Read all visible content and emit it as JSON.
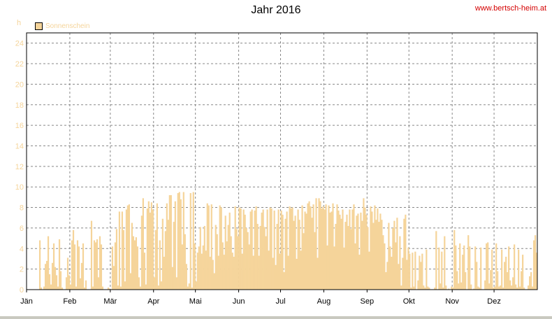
{
  "header": {
    "title": "Jahr 2016",
    "site": "www.bertsch-heim.at"
  },
  "chart_data": {
    "type": "bar",
    "title": "Jahr 2016",
    "ylabel": "h",
    "ylim": [
      0,
      25
    ],
    "yticks": [
      0,
      2,
      4,
      6,
      8,
      10,
      12,
      14,
      16,
      18,
      20,
      22,
      24
    ],
    "grid": true,
    "legend": {
      "position": "top-left",
      "entries": [
        "Sonnenschein"
      ]
    },
    "bar_color": "#f5d49a",
    "months": [
      "Jän",
      "Feb",
      "Mär",
      "Apr",
      "Mai",
      "Jun",
      "Jul",
      "Aug",
      "Sep",
      "Okt",
      "Nov",
      "Dez"
    ],
    "series": [
      {
        "name": "Sonnenschein",
        "values": [
          0,
          0,
          0,
          0,
          0,
          0,
          0,
          0,
          0,
          4.8,
          0.2,
          0,
          0.3,
          2.5,
          2.8,
          5.2,
          1.5,
          0.5,
          2.6,
          4.5,
          2.2,
          1.4,
          0.3,
          4.9,
          1.8,
          0.2,
          0,
          0,
          1.2,
          3.1,
          1.4,
          0.5,
          4.8,
          5.8,
          4.4,
          0.3,
          4.8,
          4.2,
          1.1,
          2.6,
          4.5,
          0.2,
          0.9,
          0,
          0,
          0,
          6.7,
          0.3,
          4.8,
          4.6,
          4.9,
          1.2,
          5.2,
          4.4,
          0.3,
          0,
          0,
          0,
          0.2,
          0.1,
          0,
          4.2,
          2.3,
          4.6,
          5.9,
          0.4,
          7.6,
          0.3,
          7.6,
          5.8,
          0.8,
          7.8,
          8.2,
          8.3,
          1.6,
          6.5,
          5.2,
          4.8,
          5.1,
          4.2,
          1.2,
          0.3,
          7.2,
          8.9,
          3.6,
          0.5,
          7.9,
          8.6,
          7.5,
          8.5,
          7.8,
          1.2,
          5.8,
          8.4,
          0.4,
          4.8,
          0.8,
          6.9,
          3.2,
          5.7,
          8.4,
          6.8,
          9.2,
          9.2,
          2.2,
          6.6,
          8.6,
          1.2,
          9.4,
          9.5,
          8.8,
          4.4,
          9.5,
          5.4,
          2.5,
          0.3,
          0.6,
          9.4,
          0.2,
          9.5,
          4.5,
          0.8,
          3.6,
          4.2,
          6.1,
          3.5,
          4.3,
          6.2,
          3.8,
          8.4,
          8.2,
          3.2,
          8.3,
          2.9,
          1.6,
          6.3,
          5.4,
          3.3,
          8.2,
          8.0,
          4.6,
          3.4,
          7.2,
          4.7,
          6.3,
          7.5,
          5.2,
          3.6,
          3.2,
          8.1,
          5.9,
          5.2,
          8.0,
          7.9,
          3.5,
          7.8,
          7.3,
          6.0,
          5.6,
          4.4,
          7.6,
          7.8,
          3.3,
          7.7,
          8.1,
          6.4,
          3.3,
          6.2,
          7.5,
          7.8,
          6.1,
          5.2,
          7.8,
          3.8,
          8.0,
          7.9,
          3.1,
          7.7,
          2.4,
          6.4,
          7.8,
          3.5,
          7.7,
          7.3,
          1.7,
          6.9,
          7.6,
          3.3,
          8.1,
          7.9,
          8.0,
          6.7,
          7.2,
          3.0,
          7.8,
          6.8,
          3.8,
          8.2,
          5.5,
          7.6,
          7.4,
          8.4,
          8.6,
          8.1,
          7.0,
          8.3,
          5.6,
          8.9,
          3.1,
          8.9,
          8.6,
          7.9,
          8.1,
          7.8,
          8.3,
          4.3,
          8.2,
          7.5,
          7.6,
          8.4,
          4.2,
          6.4,
          8.3,
          7.7,
          7.3,
          6.9,
          7.8,
          4.1,
          6.6,
          7.3,
          6.2,
          7.8,
          5.9,
          7.8,
          8.3,
          4.5,
          7.2,
          7.4,
          3.4,
          7.5,
          6.7,
          8.9,
          8.0,
          7.3,
          6.1,
          3.7,
          8.1,
          7.6,
          6.5,
          8.2,
          6.8,
          7.9,
          6.6,
          7.4,
          6.8,
          5.3,
          4.5,
          1.7,
          2.7,
          6.5,
          4.2,
          3.2,
          6.0,
          6.7,
          4.6,
          7.0,
          2.5,
          5.2,
          0.4,
          3.1,
          6.9,
          7.3,
          2.9,
          4.1,
          3.5,
          0.2,
          3.6,
          0.3,
          3.7,
          0,
          0.9,
          3.3,
          2.7,
          3.5,
          0.4,
          0.2,
          3.9,
          0.3,
          0.2,
          0,
          0,
          0,
          0.2,
          5.7,
          0,
          4.1,
          0.6,
          3.7,
          0.2,
          5.2,
          0.4,
          0,
          0.1,
          0,
          0.3,
          0.2,
          5.8,
          4.3,
          1.8,
          0.6,
          4.5,
          0.7,
          3.4,
          4.3,
          1.7,
          0,
          5.3,
          4.2,
          0.5,
          0,
          0.1,
          4.2,
          2.7,
          0.3,
          0.2,
          4.1,
          0,
          0,
          0.9,
          4.5,
          4.6,
          0.6,
          1.9,
          3.9,
          0.2,
          0.3,
          4.5,
          1.8,
          0.3,
          0.4,
          3.9,
          0.2,
          2.7,
          3.2,
          1.7,
          4.2,
          0.9,
          0.4,
          1.2,
          4.4,
          0.5,
          0.2,
          3.9,
          0.3,
          1.8,
          3.4,
          0.2,
          0,
          0,
          0.4,
          1.3,
          1.7,
          0.3,
          4.8,
          5.3,
          3.6
        ]
      }
    ]
  }
}
